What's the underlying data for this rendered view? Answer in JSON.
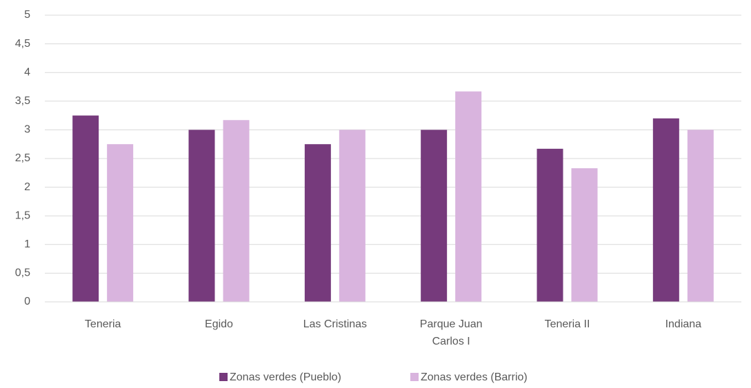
{
  "chart_data": {
    "type": "bar",
    "categories": [
      "Teneria",
      "Egido",
      "Las Cristinas",
      "Parque Juan Carlos I",
      "Teneria II",
      "Indiana"
    ],
    "series": [
      {
        "name": "Zonas verdes (Pueblo)",
        "color": "#763a7c",
        "values": [
          3.25,
          3.0,
          2.75,
          3.0,
          2.67,
          3.2
        ]
      },
      {
        "name": "Zonas verdes (Barrio)",
        "color": "#d9b4de",
        "values": [
          2.75,
          3.17,
          3.0,
          3.67,
          2.33,
          3.0
        ]
      }
    ],
    "ylim": [
      0,
      5
    ],
    "yticks": [
      0,
      {
        "value": 0.5,
        "label": "0,5"
      },
      1,
      {
        "value": 1.5,
        "label": "1,5"
      },
      2,
      {
        "value": 2.5,
        "label": "2,5"
      },
      3,
      {
        "value": 3.5,
        "label": "3,5"
      },
      4,
      {
        "value": 4.5,
        "label": "4,5"
      },
      5
    ],
    "grid": true,
    "legend": "bottom"
  }
}
